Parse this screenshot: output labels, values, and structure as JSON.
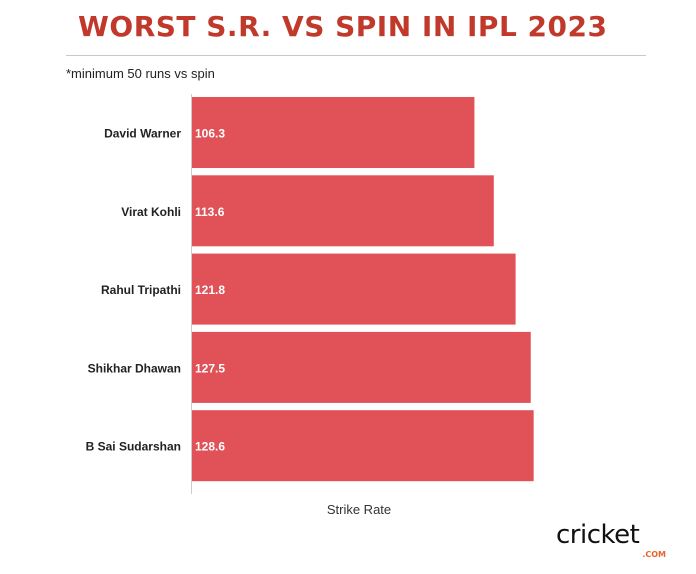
{
  "header": {
    "title": "WORST S.R. VS SPIN IN IPL 2023",
    "note": "*minimum 50 runs vs spin"
  },
  "colors": {
    "title": "#c0392b",
    "bar": "#e05257",
    "bar_label": "#ffffff"
  },
  "logo": {
    "text": "cricket",
    "sub": ".COM"
  },
  "chart_data": {
    "type": "bar",
    "orientation": "horizontal",
    "title": "WORST S.R. VS SPIN IN IPL 2023",
    "xlabel": "Strike Rate",
    "ylabel": "",
    "categories": [
      "David Warner",
      "Virat Kohli",
      "Rahul Tripathi",
      "Shikhar Dhawan",
      "B Sai Sudarshan"
    ],
    "values": [
      106.3,
      113.6,
      121.8,
      127.5,
      128.6
    ],
    "value_labels": [
      "106.3",
      "113.6",
      "121.8",
      "127.5",
      "128.6"
    ],
    "xlim": [
      0,
      134
    ],
    "grid": false,
    "legend": "none"
  }
}
